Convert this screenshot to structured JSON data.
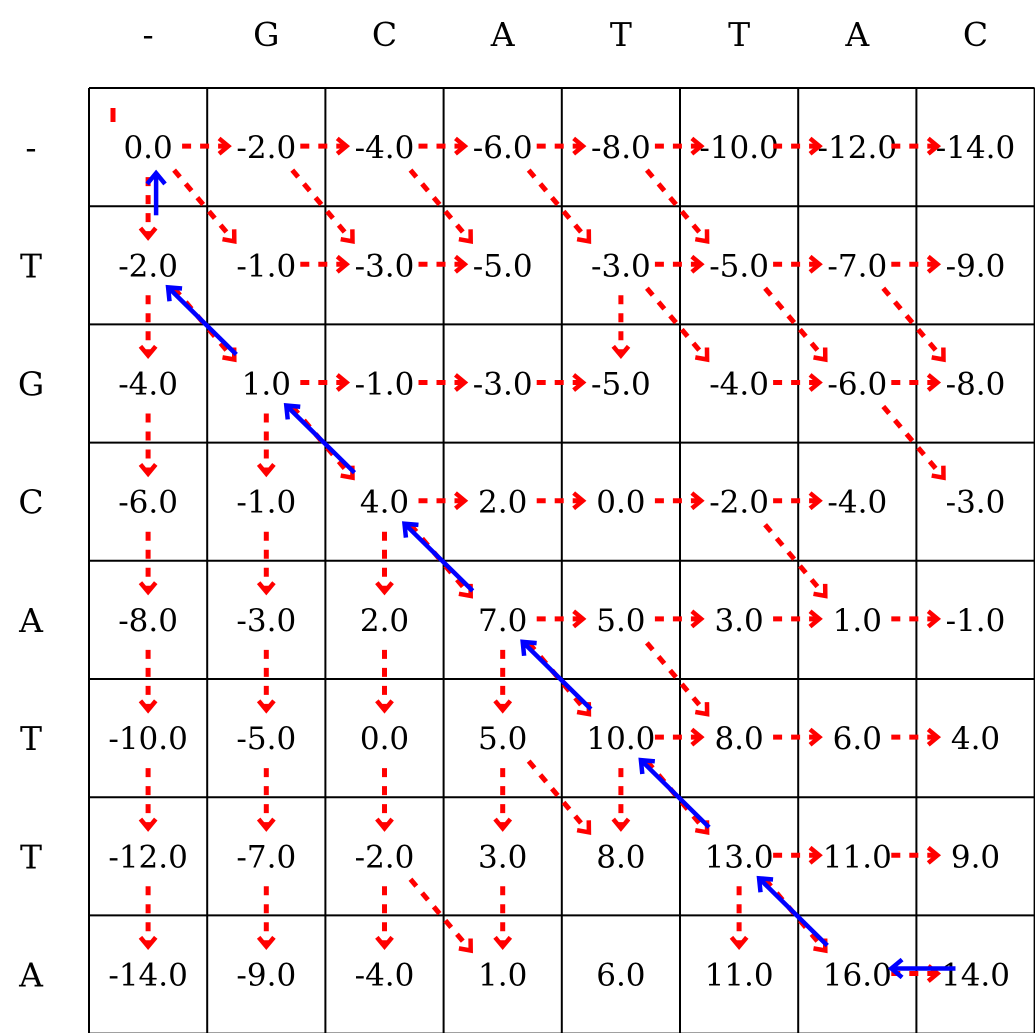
{
  "columns": [
    "-",
    "G",
    "C",
    "A",
    "T",
    "T",
    "A",
    "C"
  ],
  "rows": [
    "-",
    "T",
    "G",
    "C",
    "A",
    "T",
    "T",
    "A"
  ],
  "scores": [
    [
      "0.0",
      "-2.0",
      "-4.0",
      "-6.0",
      "-8.0",
      "-10.0",
      "-12.0",
      "-14.0"
    ],
    [
      "-2.0",
      "-1.0",
      "-3.0",
      "-5.0",
      "-3.0",
      "-5.0",
      "-7.0",
      "-9.0"
    ],
    [
      "-4.0",
      "1.0",
      "-1.0",
      "-3.0",
      "-5.0",
      "-4.0",
      "-6.0",
      "-8.0"
    ],
    [
      "-6.0",
      "-1.0",
      "4.0",
      "2.0",
      "0.0",
      "-2.0",
      "-4.0",
      "-3.0"
    ],
    [
      "-8.0",
      "-3.0",
      "2.0",
      "7.0",
      "5.0",
      "3.0",
      "1.0",
      "-1.0"
    ],
    [
      "-10.0",
      "-5.0",
      "0.0",
      "5.0",
      "10.0",
      "8.0",
      "6.0",
      "4.0"
    ],
    [
      "-12.0",
      "-7.0",
      "-2.0",
      "3.0",
      "8.0",
      "13.0",
      "11.0",
      "9.0"
    ],
    [
      "-14.0",
      "-9.0",
      "-4.0",
      "1.0",
      "6.0",
      "11.0",
      "16.0",
      "14.0"
    ]
  ],
  "pointers": {
    "right": [
      [
        0,
        0
      ],
      [
        0,
        1
      ],
      [
        0,
        2
      ],
      [
        0,
        3
      ],
      [
        0,
        4
      ],
      [
        0,
        5
      ],
      [
        0,
        6
      ],
      [
        1,
        1
      ],
      [
        1,
        2
      ],
      [
        1,
        4
      ],
      [
        1,
        5
      ],
      [
        1,
        6
      ],
      [
        2,
        1
      ],
      [
        2,
        2
      ],
      [
        2,
        3
      ],
      [
        2,
        5
      ],
      [
        2,
        6
      ],
      [
        3,
        2
      ],
      [
        3,
        3
      ],
      [
        3,
        4
      ],
      [
        3,
        5
      ],
      [
        4,
        3
      ],
      [
        4,
        4
      ],
      [
        4,
        5
      ],
      [
        4,
        6
      ],
      [
        5,
        4
      ],
      [
        5,
        5
      ],
      [
        5,
        6
      ],
      [
        6,
        5
      ],
      [
        6,
        6
      ],
      [
        7,
        6
      ]
    ],
    "down": [
      [
        0,
        0
      ],
      [
        1,
        0
      ],
      [
        1,
        4
      ],
      [
        2,
        0
      ],
      [
        2,
        1
      ],
      [
        3,
        0
      ],
      [
        3,
        1
      ],
      [
        3,
        2
      ],
      [
        4,
        0
      ],
      [
        4,
        1
      ],
      [
        4,
        2
      ],
      [
        4,
        3
      ],
      [
        5,
        0
      ],
      [
        5,
        1
      ],
      [
        5,
        2
      ],
      [
        5,
        3
      ],
      [
        5,
        4
      ],
      [
        6,
        0
      ],
      [
        6,
        1
      ],
      [
        6,
        2
      ],
      [
        6,
        3
      ],
      [
        6,
        5
      ]
    ],
    "diag": [
      [
        0,
        0
      ],
      [
        0,
        1
      ],
      [
        0,
        2
      ],
      [
        0,
        3
      ],
      [
        0,
        4
      ],
      [
        1,
        0
      ],
      [
        1,
        4
      ],
      [
        1,
        5
      ],
      [
        1,
        6
      ],
      [
        2,
        1
      ],
      [
        2,
        6
      ],
      [
        3,
        2
      ],
      [
        3,
        5
      ],
      [
        4,
        3
      ],
      [
        4,
        4
      ],
      [
        5,
        3
      ],
      [
        5,
        4
      ],
      [
        6,
        2
      ],
      [
        6,
        5
      ]
    ],
    "top_stub": [
      [
        0,
        0
      ]
    ]
  },
  "traceback": [
    {
      "from": [
        7,
        7
      ],
      "to": [
        7,
        6
      ],
      "dir": "left"
    },
    {
      "from": [
        7,
        6
      ],
      "to": [
        6,
        5
      ],
      "dir": "diag"
    },
    {
      "from": [
        6,
        5
      ],
      "to": [
        5,
        4
      ],
      "dir": "diag"
    },
    {
      "from": [
        5,
        4
      ],
      "to": [
        4,
        3
      ],
      "dir": "diag"
    },
    {
      "from": [
        4,
        3
      ],
      "to": [
        3,
        2
      ],
      "dir": "diag"
    },
    {
      "from": [
        3,
        2
      ],
      "to": [
        2,
        1
      ],
      "dir": "diag"
    },
    {
      "from": [
        2,
        1
      ],
      "to": [
        1,
        0
      ],
      "dir": "diag"
    },
    {
      "from": [
        1,
        0
      ],
      "to": [
        0,
        0
      ],
      "dir": "up"
    }
  ],
  "colors": {
    "grid": "#000000",
    "pointer": "#ff0000",
    "traceback": "#0000ff",
    "text": "#000000"
  }
}
